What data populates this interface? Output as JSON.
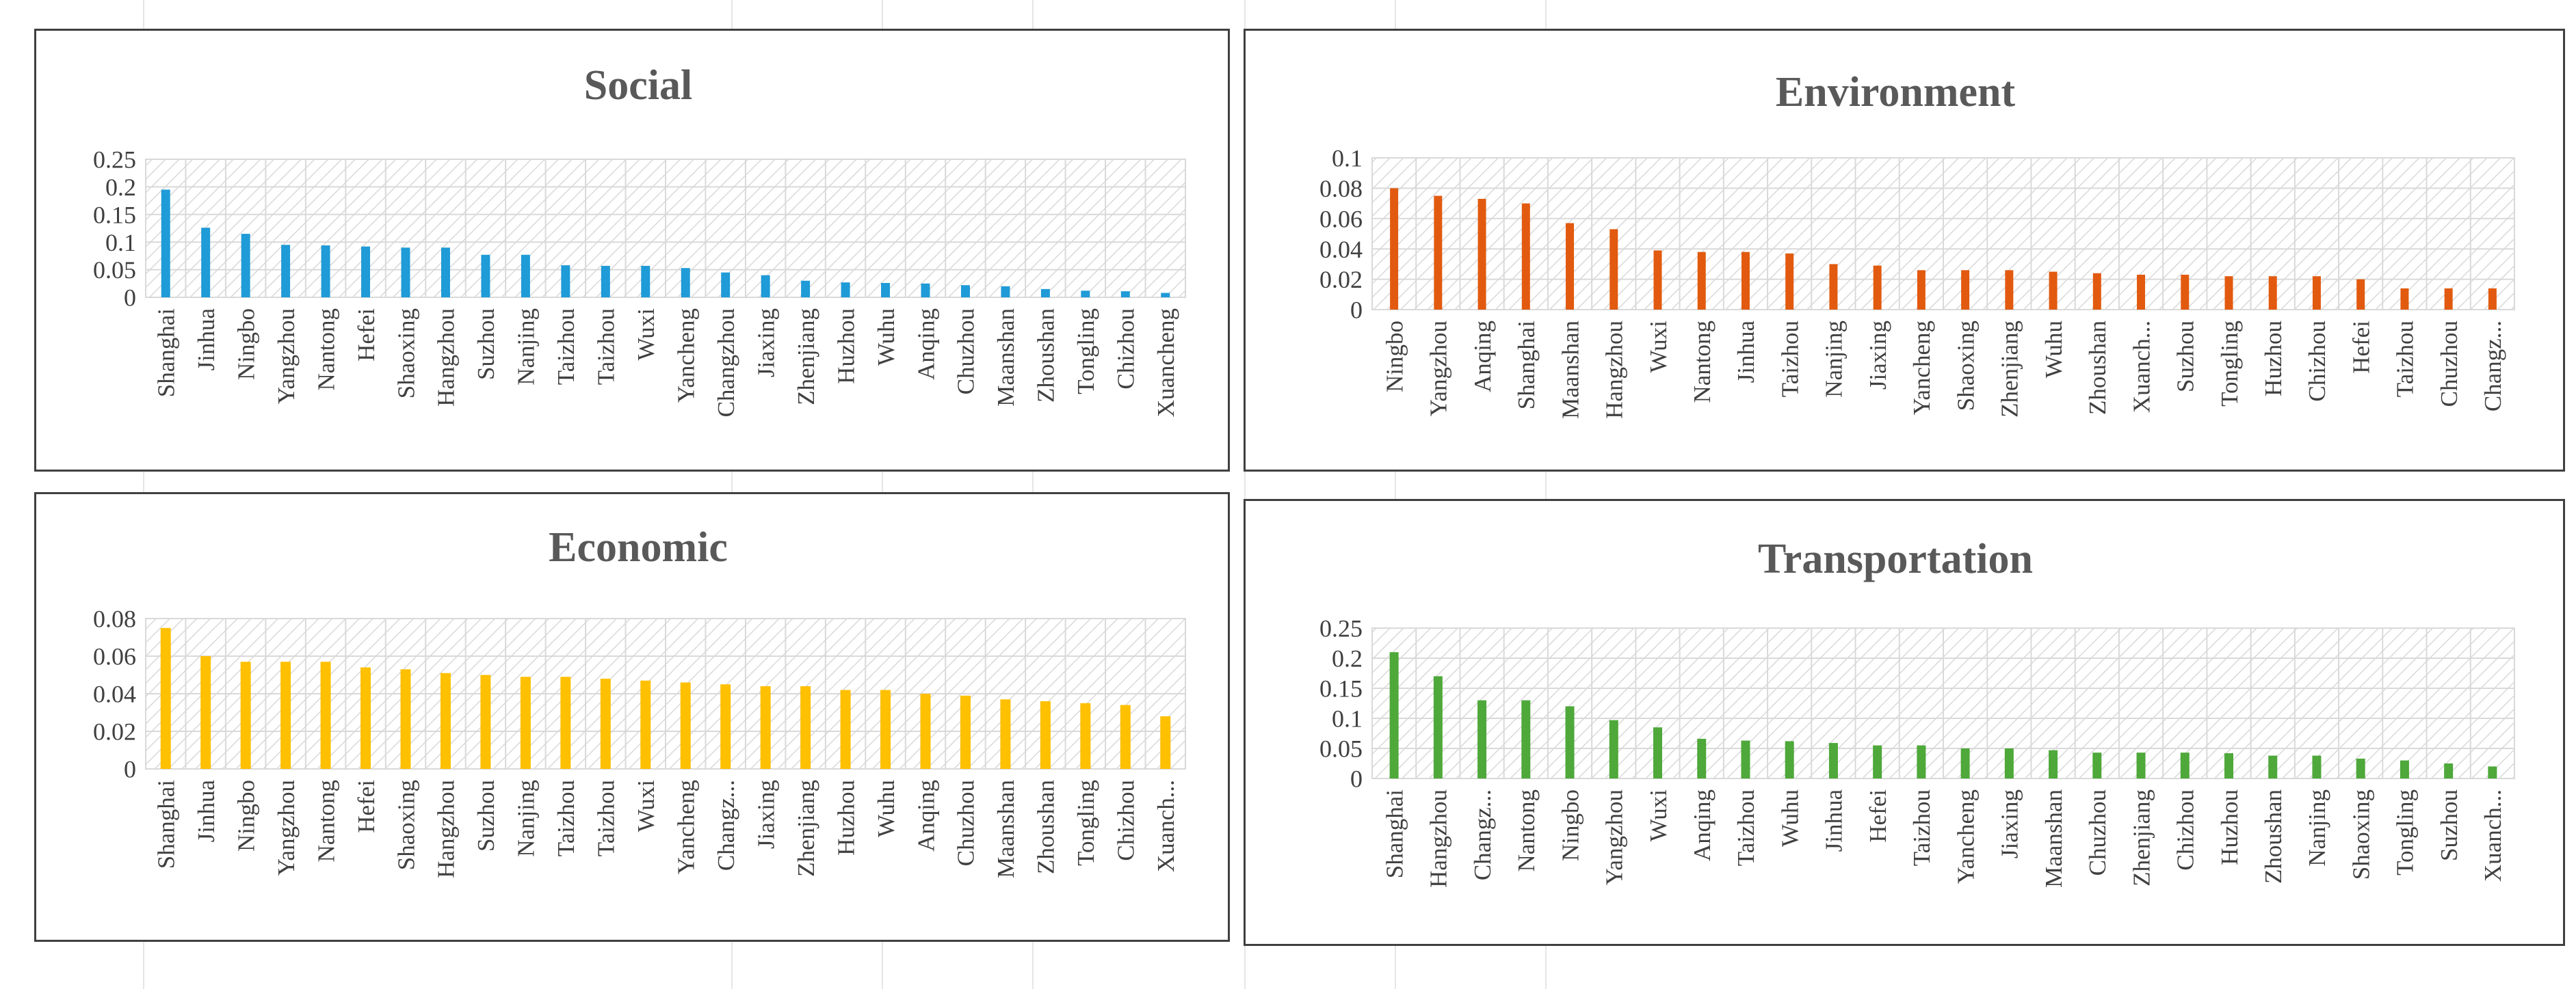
{
  "chart_data": [
    {
      "type": "bar",
      "title": "Social",
      "color": "#1f9bd7",
      "ylim": [
        0,
        0.25
      ],
      "yticks": [
        0,
        0.05,
        0.1,
        0.15,
        0.2,
        0.25
      ],
      "ytick_labels": [
        "0",
        "0.05",
        "0.1",
        "0.15",
        "0.2",
        "0.25"
      ],
      "categories": [
        "Shanghai",
        "Jinhua",
        "Ningbo",
        "Yangzhou",
        "Nantong",
        "Hefei",
        "Shaoxing",
        "Hangzhou",
        "Suzhou",
        "Nanjing",
        "Taizhou",
        "Taizhou",
        "Wuxi",
        "Yancheng",
        "Changzhou",
        "Jiaxing",
        "Zhenjiang",
        "Huzhou",
        "Wuhu",
        "Anqing",
        "Chuzhou",
        "Maanshan",
        "Zhoushan",
        "Tongling",
        "Chizhou",
        "Xuancheng"
      ],
      "values": [
        0.195,
        0.126,
        0.115,
        0.095,
        0.094,
        0.092,
        0.09,
        0.09,
        0.077,
        0.077,
        0.058,
        0.057,
        0.057,
        0.053,
        0.045,
        0.04,
        0.03,
        0.027,
        0.026,
        0.025,
        0.022,
        0.02,
        0.015,
        0.012,
        0.011,
        0.008
      ]
    },
    {
      "type": "bar",
      "title": "Environment",
      "color": "#e25a0f",
      "ylim": [
        0,
        0.1
      ],
      "yticks": [
        0,
        0.02,
        0.04,
        0.06,
        0.08,
        0.1
      ],
      "ytick_labels": [
        "0",
        "0.02",
        "0.04",
        "0.06",
        "0.08",
        "0.1"
      ],
      "categories": [
        "Ningbo",
        "Yangzhou",
        "Anqing",
        "Shanghai",
        "Maanshan",
        "Hangzhou",
        "Wuxi",
        "Nantong",
        "Jinhua",
        "Taizhou",
        "Nanjing",
        "Jiaxing",
        "Yancheng",
        "Shaoxing",
        "Zhenjiang",
        "Wuhu",
        "Zhoushan",
        "Xuanch...",
        "Suzhou",
        "Tongling",
        "Huzhou",
        "Chizhou",
        "Hefei",
        "Taizhou",
        "Chuzhou",
        "Changz..."
      ],
      "values": [
        0.08,
        0.075,
        0.073,
        0.07,
        0.057,
        0.053,
        0.039,
        0.038,
        0.038,
        0.037,
        0.03,
        0.029,
        0.026,
        0.026,
        0.026,
        0.025,
        0.024,
        0.023,
        0.023,
        0.022,
        0.022,
        0.022,
        0.02,
        0.014,
        0.014,
        0.014
      ]
    },
    {
      "type": "bar",
      "title": "Economic",
      "color": "#ffc000",
      "ylim": [
        0,
        0.08
      ],
      "yticks": [
        0,
        0.02,
        0.04,
        0.06,
        0.08
      ],
      "ytick_labels": [
        "0",
        "0.02",
        "0.04",
        "0.06",
        "0.08"
      ],
      "categories": [
        "Shanghai",
        "Jinhua",
        "Ningbo",
        "Yangzhou",
        "Nantong",
        "Hefei",
        "Shaoxing",
        "Hangzhou",
        "Suzhou",
        "Nanjing",
        "Taizhou",
        "Taizhou",
        "Wuxi",
        "Yancheng",
        "Changz...",
        "Jiaxing",
        "Zhenjiang",
        "Huzhou",
        "Wuhu",
        "Anqing",
        "Chuzhou",
        "Maanshan",
        "Zhoushan",
        "Tongling",
        "Chizhou",
        "Xuanch..."
      ],
      "values": [
        0.075,
        0.06,
        0.057,
        0.057,
        0.057,
        0.054,
        0.053,
        0.051,
        0.05,
        0.049,
        0.049,
        0.048,
        0.047,
        0.046,
        0.045,
        0.044,
        0.044,
        0.042,
        0.042,
        0.04,
        0.039,
        0.037,
        0.036,
        0.035,
        0.034,
        0.028
      ]
    },
    {
      "type": "bar",
      "title": "Transportation",
      "color": "#4ea83a",
      "ylim": [
        0,
        0.25
      ],
      "yticks": [
        0,
        0.05,
        0.1,
        0.15,
        0.2,
        0.25
      ],
      "ytick_labels": [
        "0",
        "0.05",
        "0.1",
        "0.15",
        "0.2",
        "0.25"
      ],
      "categories": [
        "Shanghai",
        "Hangzhou",
        "Changz...",
        "Nantong",
        "Ningbo",
        "Yangzhou",
        "Wuxi",
        "Anqing",
        "Taizhou",
        "Wuhu",
        "Jinhua",
        "Hefei",
        "Taizhou",
        "Yancheng",
        "Jiaxing",
        "Maanshan",
        "Chuzhou",
        "Zhenjiang",
        "Chizhou",
        "Huzhou",
        "Zhoushan",
        "Nanjing",
        "Shaoxing",
        "Tongling",
        "Suzhou",
        "Xuanch..."
      ],
      "values": [
        0.21,
        0.17,
        0.13,
        0.13,
        0.12,
        0.097,
        0.085,
        0.066,
        0.063,
        0.062,
        0.059,
        0.055,
        0.055,
        0.05,
        0.05,
        0.047,
        0.043,
        0.043,
        0.043,
        0.042,
        0.038,
        0.038,
        0.033,
        0.03,
        0.025,
        0.02
      ]
    }
  ]
}
